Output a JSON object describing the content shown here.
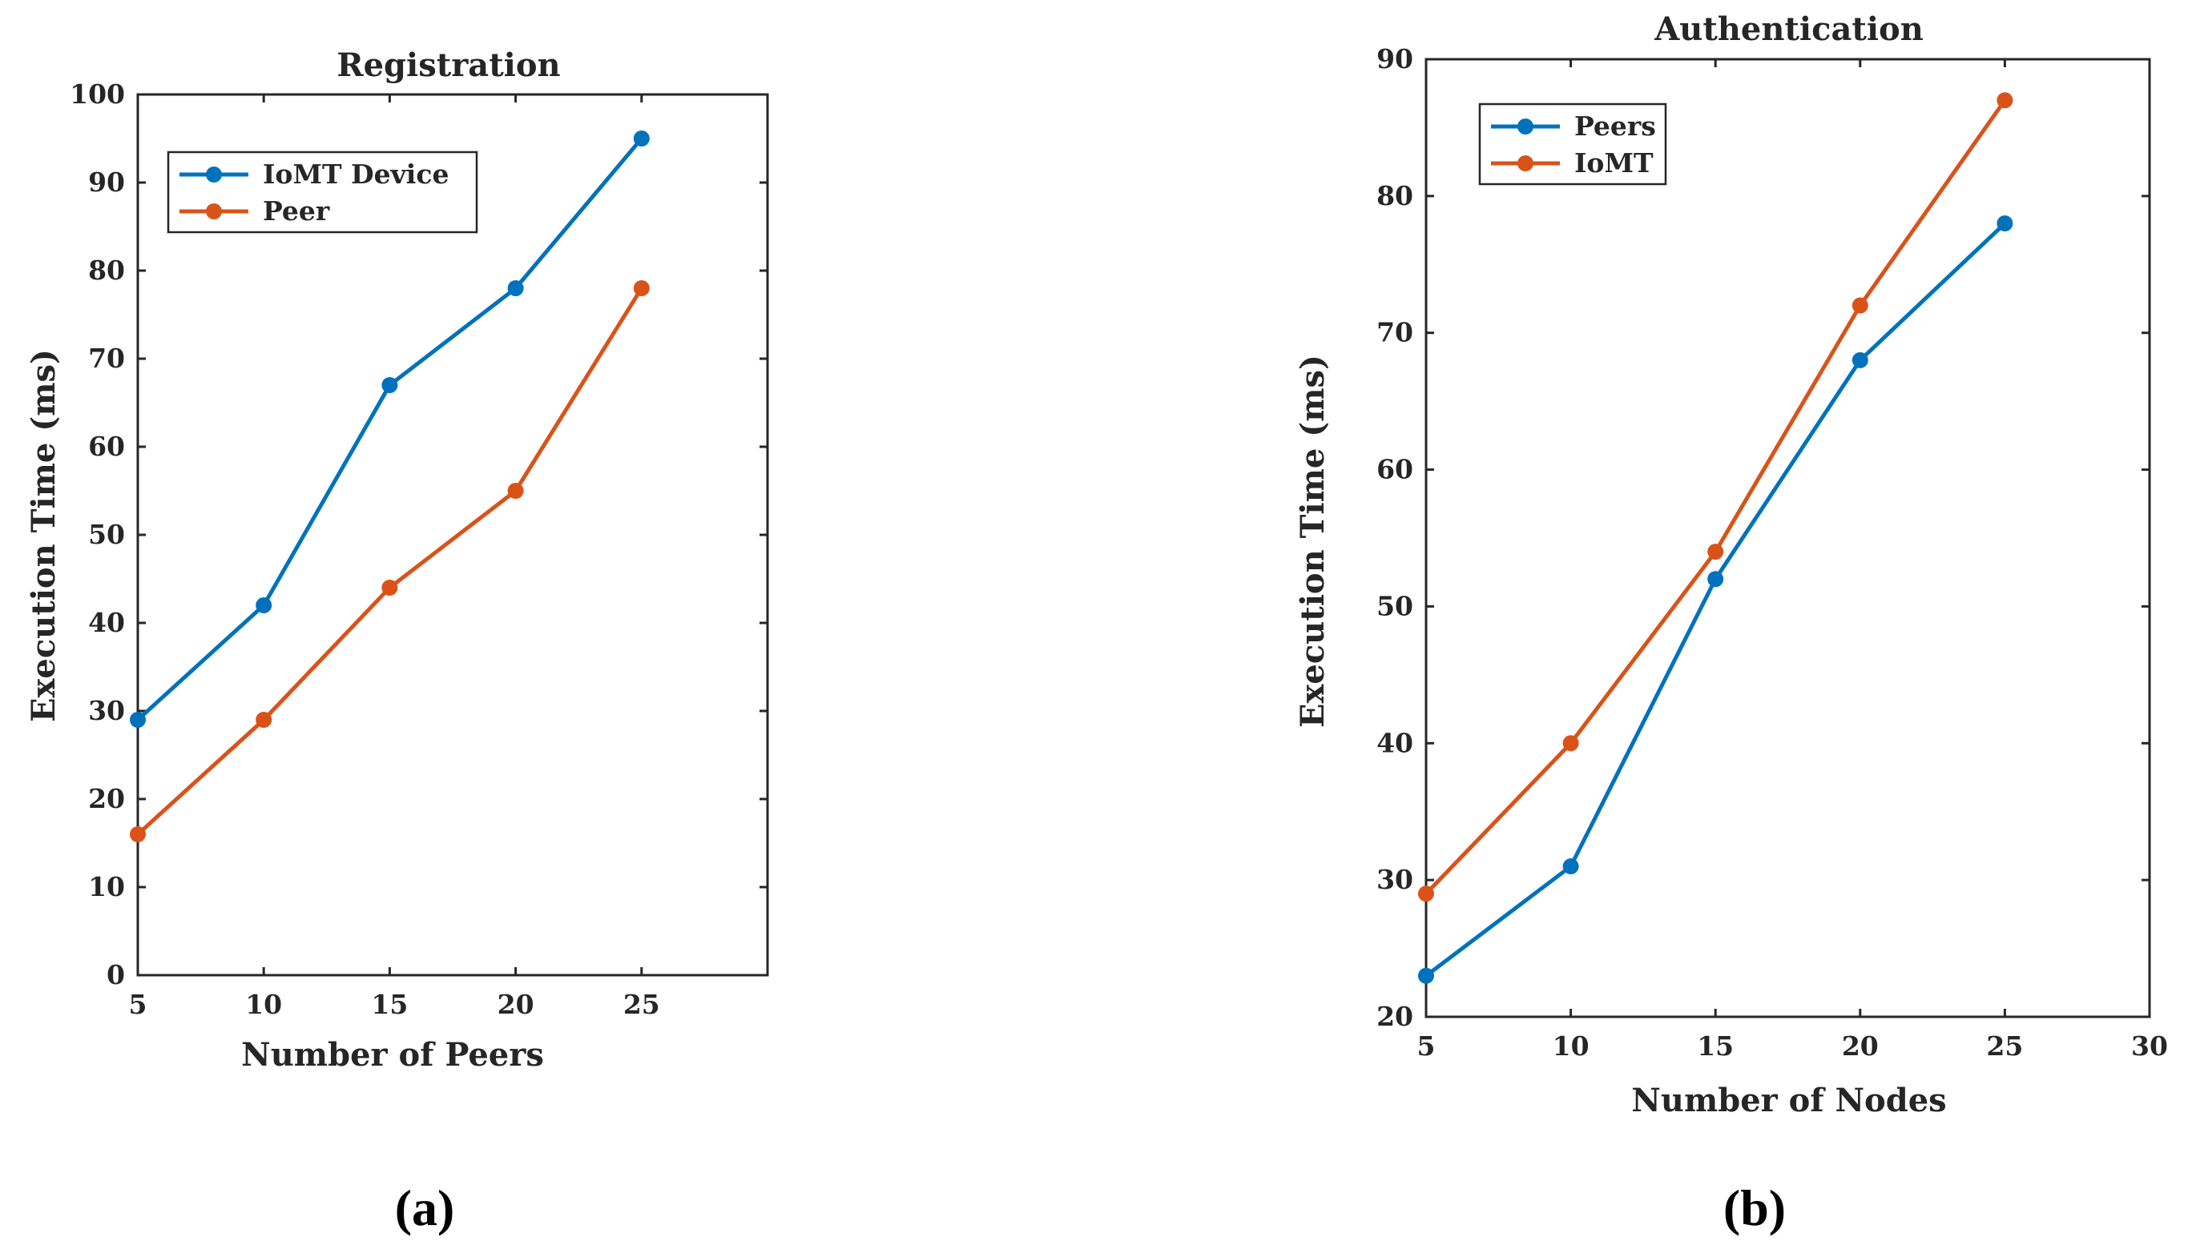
{
  "chart_data": [
    {
      "type": "line",
      "title": "Registration",
      "xlabel": "Number of Peers",
      "ylabel": "Execution Time (ms)",
      "x": [
        5,
        10,
        15,
        20,
        25
      ],
      "xlim": [
        5,
        30
      ],
      "ylim": [
        0,
        100
      ],
      "xticks": [
        5,
        10,
        15,
        20,
        25
      ],
      "yticks": [
        0,
        10,
        20,
        30,
        40,
        50,
        60,
        70,
        80,
        90,
        100
      ],
      "legend_position": "top-left",
      "grid": false,
      "caption": "(a)",
      "series": [
        {
          "name": "IoMT Device",
          "color": "#0072BD",
          "values": [
            29,
            42,
            67,
            78,
            95
          ]
        },
        {
          "name": "Peer",
          "color": "#D95319",
          "values": [
            16,
            29,
            44,
            55,
            78
          ]
        }
      ]
    },
    {
      "type": "line",
      "title": "Authentication",
      "xlabel": "Number of Nodes",
      "ylabel": "Execution Time (ms)",
      "x": [
        5,
        10,
        15,
        20,
        25
      ],
      "xlim": [
        5,
        30
      ],
      "ylim": [
        20,
        90
      ],
      "xticks": [
        5,
        10,
        15,
        20,
        25,
        30
      ],
      "yticks": [
        20,
        30,
        40,
        50,
        60,
        70,
        80,
        90
      ],
      "legend_position": "top-left",
      "grid": false,
      "caption": "(b)",
      "series": [
        {
          "name": "Peers",
          "color": "#0072BD",
          "values": [
            23,
            31,
            52,
            68,
            78
          ]
        },
        {
          "name": "IoMT",
          "color": "#D95319",
          "values": [
            29,
            40,
            54,
            72,
            87
          ]
        }
      ]
    }
  ]
}
